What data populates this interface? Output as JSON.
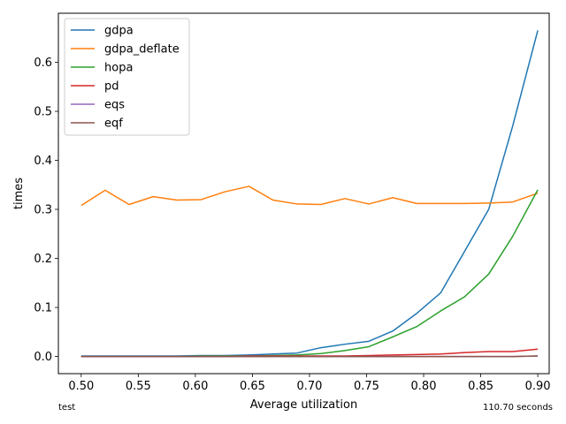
{
  "chart_data": {
    "type": "line",
    "xlabel": "Average utilization",
    "ylabel": "times",
    "xlim": [
      0.48,
      0.91
    ],
    "ylim": [
      -0.035,
      0.7
    ],
    "xticks": [
      0.5,
      0.55,
      0.6,
      0.65,
      0.7,
      0.75,
      0.8,
      0.85,
      0.9
    ],
    "xtick_labels": [
      "0.50",
      "0.55",
      "0.60",
      "0.65",
      "0.70",
      "0.75",
      "0.80",
      "0.85",
      "0.90"
    ],
    "yticks": [
      0.0,
      0.1,
      0.2,
      0.3,
      0.4,
      0.5,
      0.6
    ],
    "ytick_labels": [
      "0.0",
      "0.1",
      "0.2",
      "0.3",
      "0.4",
      "0.5",
      "0.6"
    ],
    "legend_position": "top-left",
    "grid": false,
    "x": [
      0.5,
      0.521,
      0.542,
      0.563,
      0.584,
      0.605,
      0.626,
      0.647,
      0.668,
      0.689,
      0.71,
      0.731,
      0.752,
      0.773,
      0.794,
      0.815,
      0.836,
      0.857,
      0.878,
      0.9
    ],
    "series": [
      {
        "name": "gdpa",
        "color": "#1f77b4",
        "values": [
          0.001,
          0.001,
          0.001,
          0.001,
          0.001,
          0.002,
          0.002,
          0.003,
          0.005,
          0.007,
          0.018,
          0.025,
          0.031,
          0.052,
          0.088,
          0.13,
          0.215,
          0.3,
          0.47,
          0.665
        ]
      },
      {
        "name": "gdpa_deflate",
        "color": "#ff7f0e",
        "values": [
          0.308,
          0.339,
          0.31,
          0.326,
          0.319,
          0.32,
          0.336,
          0.347,
          0.319,
          0.311,
          0.31,
          0.322,
          0.311,
          0.324,
          0.312,
          0.312,
          0.312,
          0.313,
          0.315,
          0.333
        ]
      },
      {
        "name": "hopa",
        "color": "#2ca02c",
        "values": [
          0.0,
          0.0,
          0.0,
          0.0,
          0.0,
          0.001,
          0.001,
          0.001,
          0.002,
          0.003,
          0.006,
          0.012,
          0.02,
          0.04,
          0.061,
          0.093,
          0.122,
          0.168,
          0.245,
          0.34
        ]
      },
      {
        "name": "pd",
        "color": "#d62728",
        "values": [
          0.0,
          0.0,
          0.0,
          0.0,
          0.0,
          0.0,
          0.0,
          0.001,
          0.001,
          0.001,
          0.001,
          0.001,
          0.002,
          0.003,
          0.004,
          0.005,
          0.008,
          0.01,
          0.01,
          0.015
        ]
      },
      {
        "name": "eqs",
        "color": "#9467bd",
        "values": [
          0.0,
          0.0,
          0.0,
          0.0,
          0.0,
          0.0,
          0.0,
          0.0,
          0.0,
          0.0,
          0.0,
          0.0,
          0.0,
          0.0,
          0.0,
          0.0,
          0.0,
          0.0,
          0.0,
          0.001
        ]
      },
      {
        "name": "eqf",
        "color": "#8c564b",
        "values": [
          0.0,
          0.0,
          0.0,
          0.0,
          0.0,
          0.0,
          0.0,
          0.0,
          0.0,
          0.0,
          0.0,
          0.0,
          0.0,
          0.0,
          0.0,
          0.0,
          0.0,
          0.0,
          0.0,
          0.001
        ]
      }
    ]
  },
  "footer": {
    "left": "test",
    "right": "110.70 seconds"
  }
}
